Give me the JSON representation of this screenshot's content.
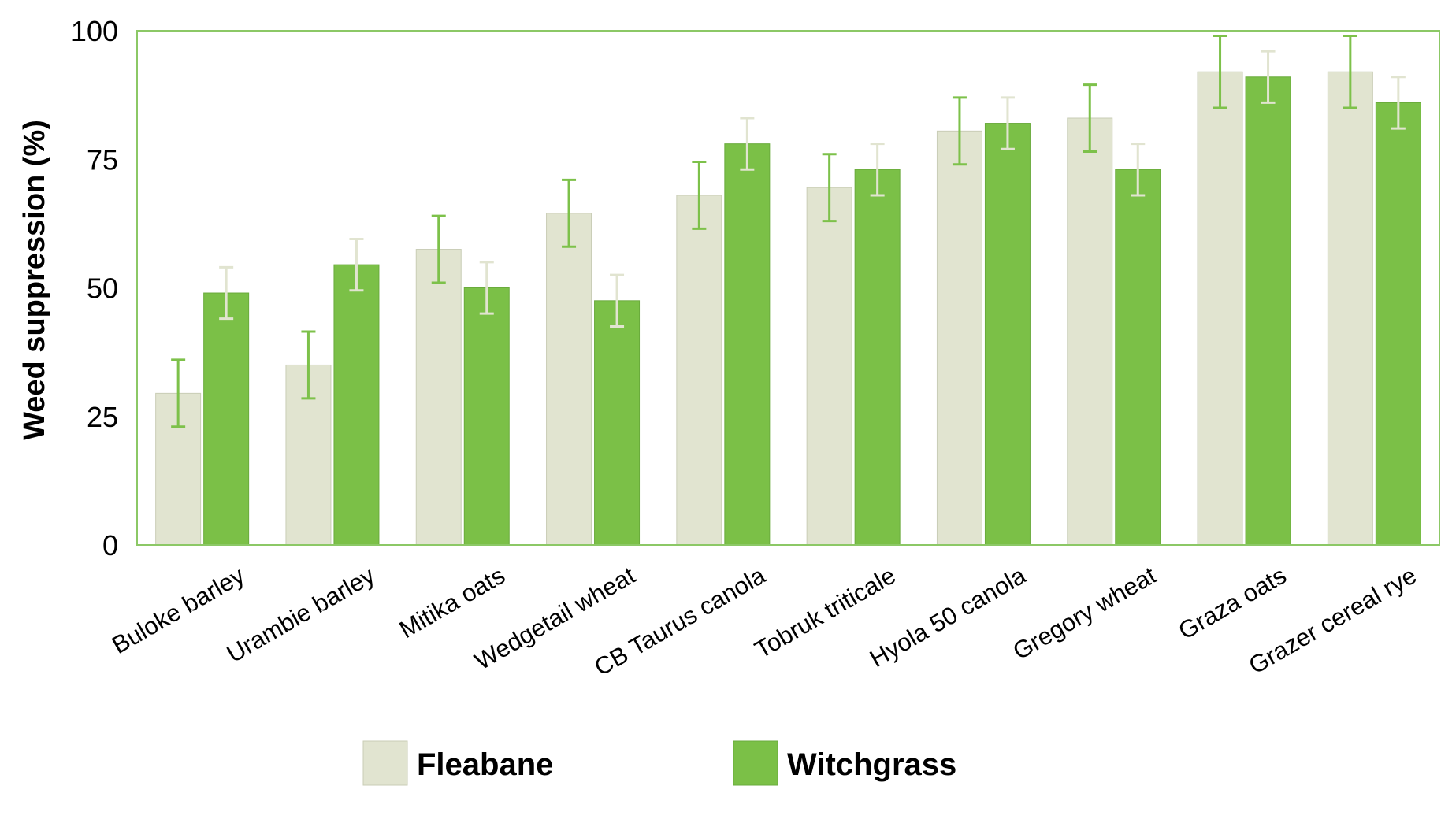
{
  "chart_data": {
    "type": "bar",
    "title": "",
    "xlabel": "",
    "ylabel": "Weed suppression (%)",
    "ylim": [
      0,
      100
    ],
    "yticks": [
      0,
      25,
      50,
      75,
      100
    ],
    "grid": false,
    "legend_placement": "bottom",
    "categories": [
      "Buloke barley",
      "Urambie barley",
      "Mitika oats",
      "Wedgetail wheat",
      "CB Taurus canola",
      "Tobruk triticale",
      "Hyola 50 canola",
      "Gregory wheat",
      "Graza oats",
      "Grazer cereal rye"
    ],
    "series": [
      {
        "name": "Fleabane",
        "color": "#e1e4d0",
        "error_color": "#7dc14a",
        "values": [
          29.5,
          35,
          57.5,
          64.5,
          68,
          69.5,
          80.5,
          83,
          92,
          92
        ],
        "error": [
          6.5,
          6.5,
          6.5,
          6.5,
          6.5,
          6.5,
          6.5,
          6.5,
          7,
          7
        ]
      },
      {
        "name": "Witchgrass",
        "color": "#7bc047",
        "error_color": "#e1e4d0",
        "values": [
          49,
          54.5,
          50,
          47.5,
          78,
          73,
          82,
          73,
          91,
          86
        ],
        "error": [
          5,
          5,
          5,
          5,
          5,
          5,
          5,
          5,
          5,
          5
        ]
      }
    ]
  }
}
